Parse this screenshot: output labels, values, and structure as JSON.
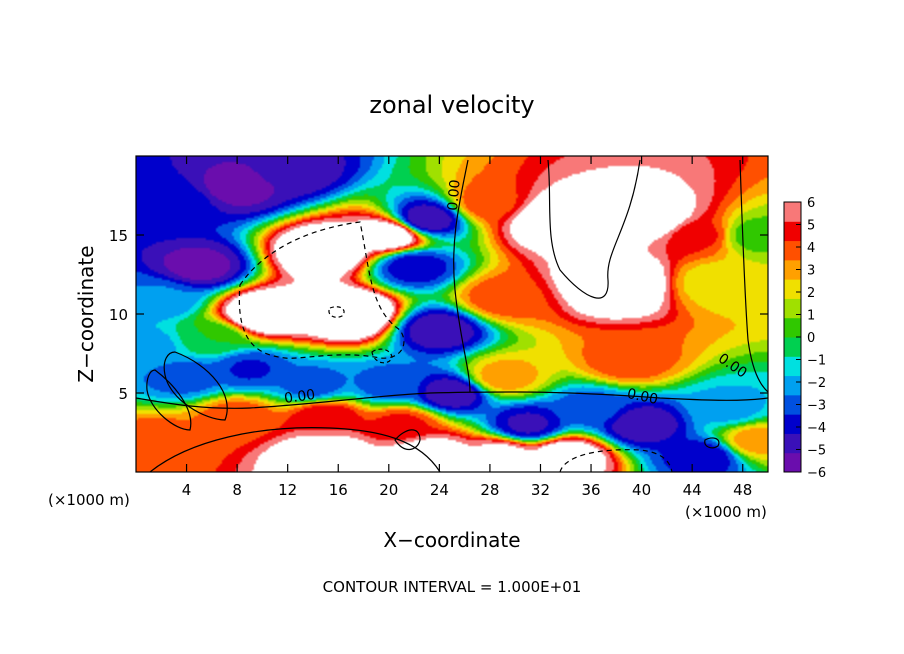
{
  "chart_data": {
    "type": "heatmap",
    "title": "zonal velocity",
    "xlabel": "X−coordinate",
    "ylabel": "Z−coordinate",
    "x_unit_left": "(×1000 m)",
    "x_unit_right": "(×1000 m)",
    "footer": "CONTOUR INTERVAL = 1.000E+01",
    "xlim": [
      0,
      50
    ],
    "ylim": [
      0,
      20
    ],
    "x_ticks": [
      4,
      8,
      12,
      16,
      20,
      24,
      28,
      32,
      36,
      40,
      44,
      48
    ],
    "y_ticks": [
      5,
      10,
      15
    ],
    "colorbar": {
      "min": -6,
      "max": 6,
      "ticks": [
        6,
        5,
        4,
        3,
        2,
        1,
        0,
        -1,
        -2,
        -3,
        -4,
        -5,
        -6
      ],
      "colors": [
        "#6a0dad",
        "#3a10b8",
        "#0000cc",
        "#0050e0",
        "#00a0f0",
        "#00e0e0",
        "#00d050",
        "#30c800",
        "#a0e000",
        "#f0e000",
        "#ffa000",
        "#ff5000",
        "#f00000",
        "#f87878"
      ]
    },
    "contour_labels": [
      {
        "text": "0.00",
        "x": 13,
        "z": 4.5,
        "angle": -8
      },
      {
        "text": "0.00",
        "x": 40,
        "z": 4.5,
        "angle": 12
      },
      {
        "text": "0.00",
        "x": 25.5,
        "z": 17.5,
        "angle": -85
      },
      {
        "text": "0.00",
        "x": 47,
        "z": 6.5,
        "angle": 35
      }
    ],
    "field_anchors": [
      {
        "x": 3,
        "z": 17,
        "v": -3.5
      },
      {
        "x": 8,
        "z": 18,
        "v": -5.5
      },
      {
        "x": 12,
        "z": 19,
        "v": -5
      },
      {
        "x": 2,
        "z": 11,
        "v": -2.5
      },
      {
        "x": 5,
        "z": 13,
        "v": -5.5
      },
      {
        "x": 15,
        "z": 14,
        "v": 9
      },
      {
        "x": 10,
        "z": 10,
        "v": 9
      },
      {
        "x": 17,
        "z": 10,
        "v": 10
      },
      {
        "x": 20,
        "z": 15,
        "v": 8
      },
      {
        "x": 23,
        "z": 16,
        "v": -5
      },
      {
        "x": 22,
        "z": 13,
        "v": -4
      },
      {
        "x": 24,
        "z": 9,
        "v": -5
      },
      {
        "x": 25,
        "z": 5,
        "v": -5
      },
      {
        "x": 28,
        "z": 17,
        "v": 4
      },
      {
        "x": 29,
        "z": 11,
        "v": 4
      },
      {
        "x": 29,
        "z": 6,
        "v": 3
      },
      {
        "x": 33,
        "z": 16,
        "v": 9
      },
      {
        "x": 38,
        "z": 12,
        "v": 10
      },
      {
        "x": 41,
        "z": 16,
        "v": 8
      },
      {
        "x": 39,
        "z": 7,
        "v": 4
      },
      {
        "x": 36,
        "z": 4,
        "v": -3
      },
      {
        "x": 40,
        "z": 3,
        "v": -5
      },
      {
        "x": 31,
        "z": 3,
        "v": -4.5
      },
      {
        "x": 34,
        "z": 1,
        "v": 8
      },
      {
        "x": 29,
        "z": 1,
        "v": 7
      },
      {
        "x": 44.5,
        "z": 15,
        "v": 4.5
      },
      {
        "x": 46,
        "z": 12,
        "v": 2
      },
      {
        "x": 49,
        "z": 15,
        "v": 0.5
      },
      {
        "x": 47,
        "z": 4,
        "v": -2
      },
      {
        "x": 49,
        "z": 2,
        "v": 3
      },
      {
        "x": 45,
        "z": 1,
        "v": -4
      },
      {
        "x": 2,
        "z": 2,
        "v": 4
      },
      {
        "x": 8,
        "z": 3.5,
        "v": 4
      },
      {
        "x": 4,
        "z": 6,
        "v": -3
      },
      {
        "x": 9,
        "z": 6.5,
        "v": -3.5
      },
      {
        "x": 14,
        "z": 5.5,
        "v": -3
      },
      {
        "x": 20,
        "z": 5.5,
        "v": -3
      },
      {
        "x": 15,
        "z": 3.5,
        "v": 5
      },
      {
        "x": 21,
        "z": 3,
        "v": 4.5
      },
      {
        "x": 15,
        "z": 1,
        "v": 9
      },
      {
        "x": 23,
        "z": 1,
        "v": 8
      },
      {
        "x": 1,
        "z": 8,
        "v": -2
      },
      {
        "x": 6,
        "z": 8.5,
        "v": 0
      }
    ]
  }
}
